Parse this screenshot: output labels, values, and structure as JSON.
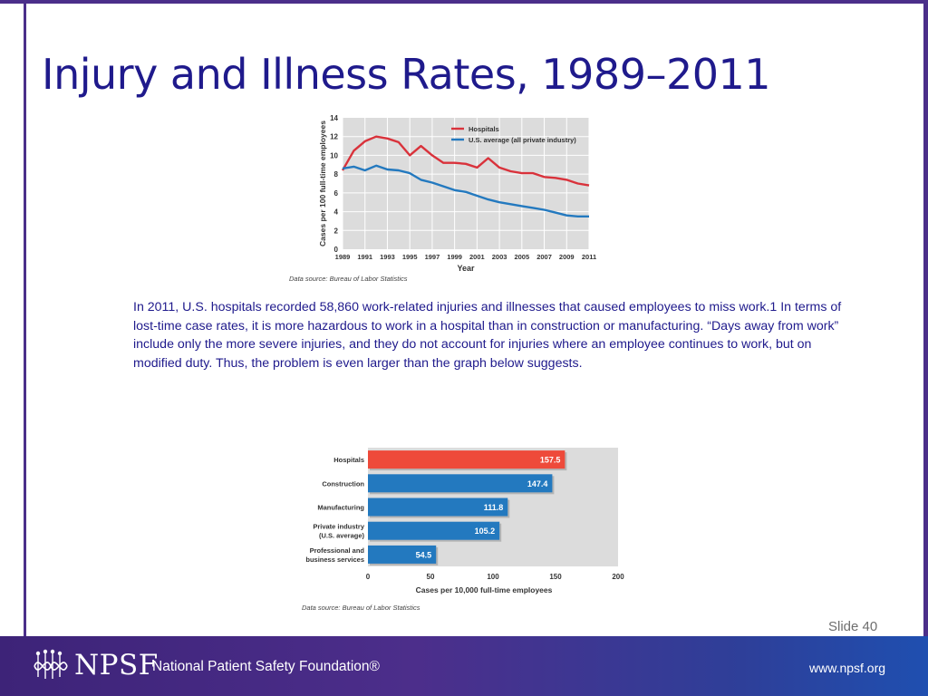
{
  "slide": {
    "title": "Injury and Illness Rates, 1989–2011",
    "body_text": "In 2011, U.S. hospitals recorded 58,860 work-related injuries and illnesses that caused employees to miss work.1 In terms of lost-time case rates, it is more hazardous to work in a hospital than in construction or manufacturing. “Days away from work” include only the more severe injuries, and they do not account for injuries where an employee continues to work, but on modified duty. Thus, the problem is even larger than the graph below suggests.",
    "slide_number": "Slide 40"
  },
  "footer": {
    "brand": "NPSF",
    "org_name": "National Patient Safety Foundation®",
    "url": "www.npsf.org",
    "logo_icon": "npsf-logo-icon"
  },
  "chart_data": [
    {
      "type": "line",
      "title": "",
      "xlabel": "Year",
      "ylabel": "Cases per 100 full-time employees",
      "source": "Data source: Bureau of Labor Statistics",
      "xlim": [
        1989,
        2011
      ],
      "ylim": [
        0,
        14
      ],
      "xticks": [
        1989,
        1991,
        1993,
        1995,
        1997,
        1999,
        2001,
        2003,
        2005,
        2007,
        2009,
        2011
      ],
      "yticks": [
        0,
        2,
        4,
        6,
        8,
        10,
        12,
        14
      ],
      "grid": true,
      "legend_position": "top-right",
      "x": [
        1989,
        1990,
        1991,
        1992,
        1993,
        1994,
        1995,
        1996,
        1997,
        1998,
        1999,
        2000,
        2001,
        2002,
        2003,
        2004,
        2005,
        2006,
        2007,
        2008,
        2009,
        2010,
        2011
      ],
      "series": [
        {
          "name": "Hospitals",
          "color": "#d9323b",
          "values": [
            8.4,
            10.5,
            11.5,
            12.0,
            11.8,
            11.4,
            10.0,
            11.0,
            10.0,
            9.2,
            9.2,
            9.1,
            8.7,
            9.7,
            8.7,
            8.3,
            8.1,
            8.1,
            7.7,
            7.6,
            7.4,
            7.0,
            6.8
          ]
        },
        {
          "name": "U.S. average (all private industry)",
          "color": "#2379bf",
          "values": [
            8.6,
            8.8,
            8.4,
            8.9,
            8.5,
            8.4,
            8.1,
            7.4,
            7.1,
            6.7,
            6.3,
            6.1,
            5.7,
            5.3,
            5.0,
            4.8,
            4.6,
            4.4,
            4.2,
            3.9,
            3.6,
            3.5,
            3.5
          ]
        }
      ]
    },
    {
      "type": "bar",
      "orientation": "horizontal",
      "title": "",
      "xlabel": "Cases per 10,000 full-time employees",
      "ylabel": "",
      "source": "Data source: Bureau of Labor Statistics",
      "xlim": [
        0,
        200
      ],
      "xticks": [
        0,
        50,
        100,
        150,
        200
      ],
      "categories": [
        [
          "Hospitals"
        ],
        [
          "Construction"
        ],
        [
          "Manufacturing"
        ],
        [
          "Private industry",
          "(U.S. average)"
        ],
        [
          "Professional and",
          "business services"
        ]
      ],
      "values": [
        157.5,
        147.4,
        111.8,
        105.2,
        54.5
      ],
      "value_labels": [
        "157.5",
        "147.4",
        "111.8",
        "105.2",
        "54.5"
      ],
      "colors": [
        "#ee4a3a",
        "#2379bf",
        "#2379bf",
        "#2379bf",
        "#2379bf"
      ]
    }
  ]
}
